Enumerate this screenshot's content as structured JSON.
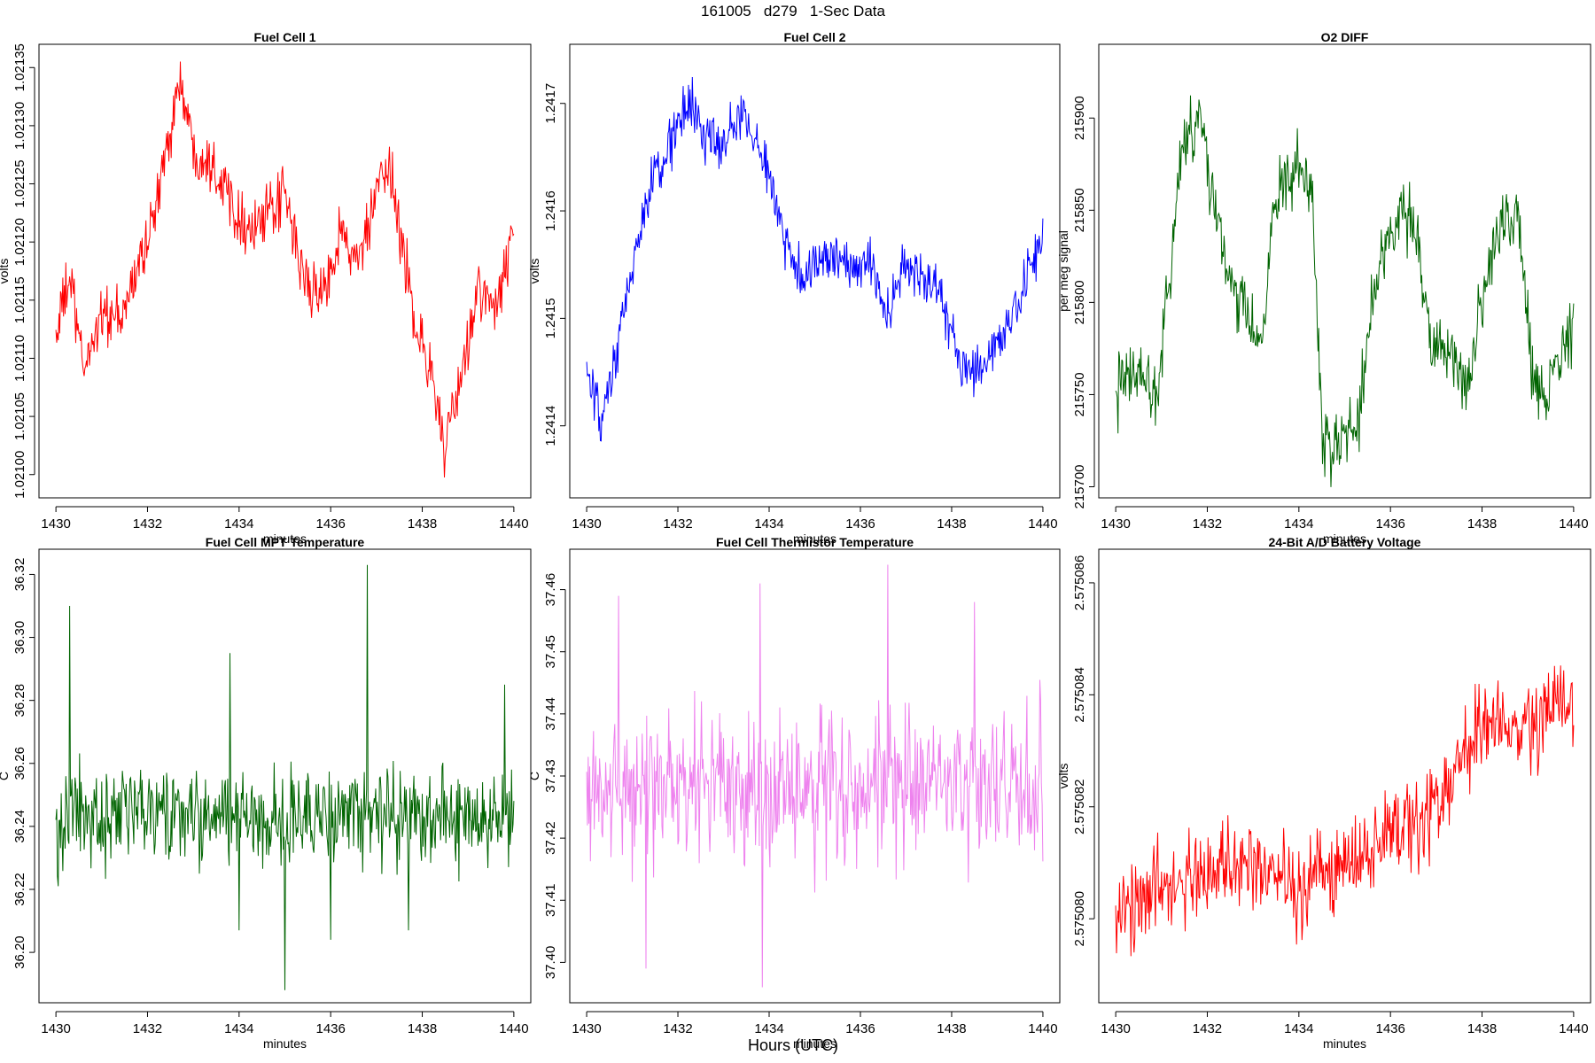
{
  "figure": {
    "title": "161005   d279   1-Sec Data",
    "xlabel": "Hours (UTC)"
  },
  "chart_data": [
    {
      "type": "line",
      "title": "Fuel Cell 1",
      "xlabel": "minutes",
      "ylabel": "volts",
      "color": "#ff0000",
      "x_ticks": [
        1430,
        1432,
        1434,
        1436,
        1438,
        1440
      ],
      "y_ticks": [
        "1.02100",
        "1.02105",
        "1.02110",
        "1.02115",
        "1.02120",
        "1.02125",
        "1.02130",
        "1.02135"
      ],
      "xlim": [
        1429.63,
        1440.37
      ],
      "ylim": [
        1.02098,
        1.02137
      ],
      "series": [
        {
          "x": [
            1430,
            1430.3,
            1430.6,
            1431,
            1431.4,
            1431.8,
            1432.2,
            1432.5,
            1432.7,
            1433,
            1433.4,
            1433.8,
            1434.2,
            1434.6,
            1435,
            1435.4,
            1435.8,
            1436.2,
            1436.6,
            1437,
            1437.3,
            1437.6,
            1437.9,
            1438.2,
            1438.5,
            1438.8,
            1439.2,
            1439.6,
            1440
          ],
          "y": [
            1.02112,
            1.02117,
            1.02109,
            1.02114,
            1.02113,
            1.02118,
            1.02123,
            1.0213,
            1.02134,
            1.02128,
            1.02127,
            1.02124,
            1.02121,
            1.02122,
            1.02124,
            1.02117,
            1.02115,
            1.02121,
            1.02118,
            1.02124,
            1.02126,
            1.02119,
            1.02112,
            1.02109,
            1.02102,
            1.02107,
            1.02116,
            1.02114,
            1.02121
          ],
          "noise": 1.8e-05
        }
      ]
    },
    {
      "type": "line",
      "title": "Fuel Cell 2",
      "xlabel": "minutes",
      "ylabel": "volts",
      "color": "#0000ff",
      "x_ticks": [
        1430,
        1432,
        1434,
        1436,
        1438,
        1440
      ],
      "y_ticks": [
        "1.2414",
        "1.2415",
        "1.2416",
        "1.2417"
      ],
      "xlim": [
        1429.63,
        1440.37
      ],
      "ylim": [
        1.241333,
        1.241755
      ],
      "series": [
        {
          "x": [
            1430,
            1430.3,
            1430.6,
            1431,
            1431.4,
            1431.8,
            1432.2,
            1432.6,
            1433,
            1433.4,
            1433.8,
            1434.2,
            1434.6,
            1435,
            1435.4,
            1435.8,
            1436.2,
            1436.6,
            1437,
            1437.4,
            1437.8,
            1438.2,
            1438.6,
            1439,
            1439.4,
            1440
          ],
          "y": [
            1.24145,
            1.2414,
            1.24145,
            1.24155,
            1.24162,
            1.24166,
            1.2417,
            1.24167,
            1.24166,
            1.24169,
            1.24166,
            1.2416,
            1.24154,
            1.24155,
            1.24156,
            1.24154,
            1.24156,
            1.2415,
            1.24155,
            1.24154,
            1.24152,
            1.24145,
            1.24145,
            1.24148,
            1.2415,
            1.24158
          ],
          "noise": 1.8e-05
        }
      ]
    },
    {
      "type": "line",
      "title": "O2 DIFF",
      "xlabel": "minutes",
      "ylabel": "per meg signal",
      "color": "#006400",
      "x_ticks": [
        1430,
        1432,
        1434,
        1436,
        1438,
        1440
      ],
      "y_ticks": [
        "215700",
        "215750",
        "215800",
        "215850",
        "215900"
      ],
      "xlim": [
        1429.63,
        1440.37
      ],
      "ylim": [
        215694,
        215940
      ],
      "series": [
        {
          "x": [
            1430,
            1430.5,
            1430.9,
            1431.1,
            1431.5,
            1431.9,
            1432.1,
            1432.5,
            1432.9,
            1433.2,
            1433.4,
            1433.9,
            1434.3,
            1434.5,
            1434.9,
            1435.3,
            1435.6,
            1436,
            1436.3,
            1436.6,
            1436.9,
            1437.3,
            1437.7,
            1438,
            1438.4,
            1438.8,
            1439.1,
            1439.4,
            1439.7,
            1440
          ],
          "y": [
            215750,
            215765,
            215750,
            215800,
            215890,
            215900,
            215860,
            215810,
            215790,
            215770,
            215850,
            215870,
            215860,
            215720,
            215725,
            215735,
            215800,
            215840,
            215850,
            215830,
            215780,
            215770,
            215755,
            215800,
            215840,
            215845,
            215760,
            215750,
            215770,
            215790
          ],
          "noise": 13
        }
      ]
    },
    {
      "type": "line",
      "title": "Fuel Cell MPT Temperature",
      "xlabel": "minutes",
      "ylabel": "C",
      "color": "#006400",
      "x_ticks": [
        1430,
        1432,
        1434,
        1436,
        1438,
        1440
      ],
      "y_ticks": [
        "36.20",
        "36.22",
        "36.24",
        "36.26",
        "36.28",
        "36.30",
        "36.32"
      ],
      "xlim": [
        1429.63,
        1440.37
      ],
      "ylim": [
        36.184,
        36.328
      ],
      "series": [
        {
          "x": [
            1430,
            1440
          ],
          "y": [
            36.243,
            36.243
          ],
          "noise": 0.011,
          "spikes": [
            [
              1430.05,
              36.221
            ],
            [
              1430.3,
              36.31
            ],
            [
              1433.8,
              36.295
            ],
            [
              1434.0,
              36.207
            ],
            [
              1435.0,
              36.188
            ],
            [
              1436.0,
              36.204
            ],
            [
              1436.8,
              36.323
            ],
            [
              1437.7,
              36.207
            ],
            [
              1439.8,
              36.285
            ]
          ]
        }
      ]
    },
    {
      "type": "line",
      "title": "Fuel Cell Thermistor Temperature",
      "xlabel": "minutes",
      "ylabel": "C",
      "color": "#ee82ee",
      "x_ticks": [
        1430,
        1432,
        1434,
        1436,
        1438,
        1440
      ],
      "y_ticks": [
        "37.40",
        "37.41",
        "37.42",
        "37.43",
        "37.44",
        "37.45",
        "37.46"
      ],
      "xlim": [
        1429.63,
        1440.37
      ],
      "ylim": [
        37.3935,
        37.4665
      ],
      "series": [
        {
          "x": [
            1430,
            1440
          ],
          "y": [
            37.428,
            37.428
          ],
          "noise": 0.009,
          "spikes": [
            [
              1430.7,
              37.459
            ],
            [
              1431.3,
              37.399
            ],
            [
              1433.8,
              37.461
            ],
            [
              1433.85,
              37.396
            ],
            [
              1436.6,
              37.464
            ],
            [
              1438.5,
              37.458
            ]
          ]
        }
      ]
    },
    {
      "type": "line",
      "title": "24-Bit A/D Battery Voltage",
      "xlabel": "minutes",
      "ylabel": "volts",
      "color": "#ff0000",
      "x_ticks": [
        1430,
        1432,
        1434,
        1436,
        1438,
        1440
      ],
      "y_ticks": [
        "2.575080",
        "2.575082",
        "2.575084",
        "2.575086"
      ],
      "xlim": [
        1429.63,
        1440.37
      ],
      "ylim": [
        2.5750785,
        2.5750866
      ],
      "series": [
        {
          "x": [
            1430,
            1431,
            1432,
            1433,
            1434,
            1435,
            1436,
            1437,
            1438,
            1439,
            1440
          ],
          "y": [
            2.57508,
            2.5750806,
            2.5750808,
            2.575081,
            2.5750805,
            2.575081,
            2.5750815,
            2.575082,
            2.5750835,
            2.5750835,
            2.5750838
          ],
          "noise": 5.5e-07
        }
      ]
    }
  ]
}
